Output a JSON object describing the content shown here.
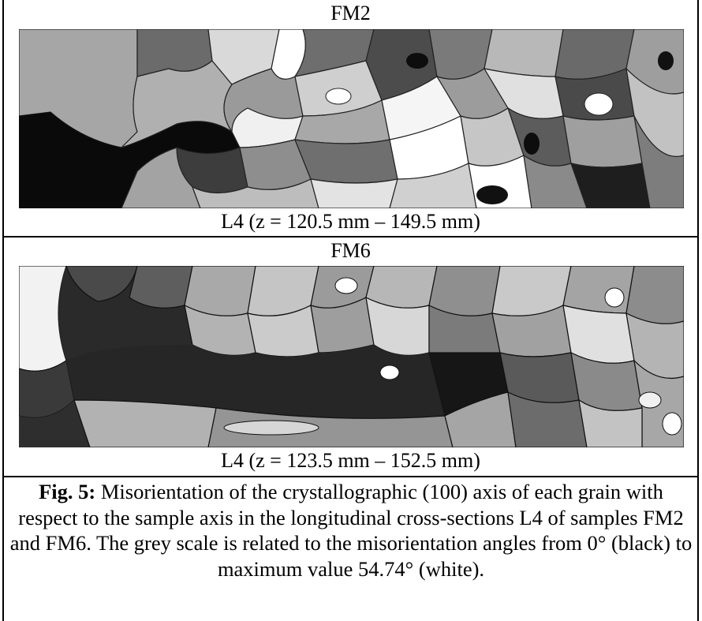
{
  "panel_top": {
    "title": "FM2",
    "subtitle": "L4 (z = 120.5 mm – 149.5 mm)"
  },
  "panel_bottom": {
    "title": "FM6",
    "subtitle": "L4 (z = 123.5 mm – 152.5 mm)"
  },
  "caption": {
    "label": "Fig. 5:",
    "text": " Misorientation of the crystallographic (100) axis of each grain with respect to the sample axis in the longitudinal cross-sections L4 of samples FM2 and FM6. The grey scale is related to the misorientation angles from 0° (black) to maximum value 54.74° (white)."
  }
}
